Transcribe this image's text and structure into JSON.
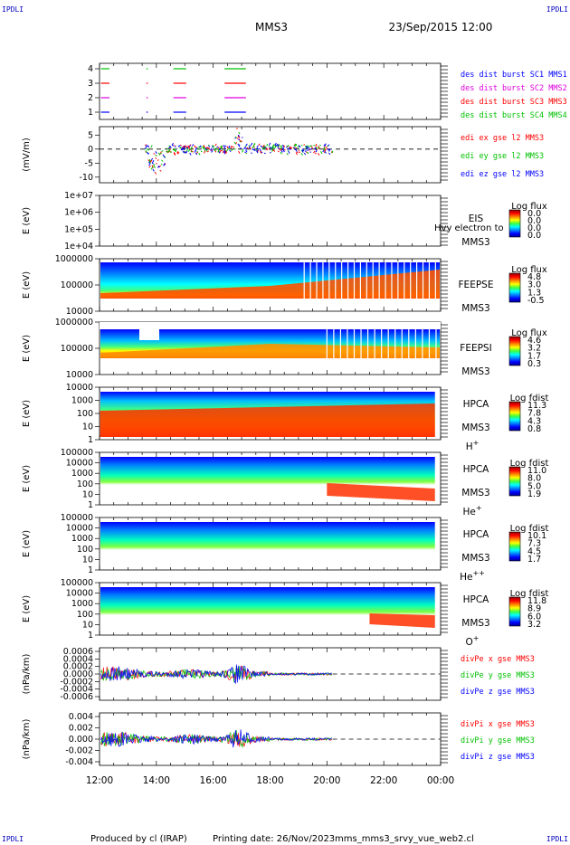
{
  "header": {
    "logo_left": "IPDLI",
    "logo_right": "IPDLI",
    "title": "MMS3",
    "date": "23/Sep/2015 12:00"
  },
  "footer": {
    "logo_left": "IPDLI",
    "logo_right": "IPDLI",
    "produced_by": "Produced by cl (IRAP)",
    "printing_date": "Printing date: 26/Nov/2023",
    "file": "mms_mms3_srvy_vue_web2.cl"
  },
  "colors": {
    "red": "#ff0000",
    "magenta": "#e000e0",
    "green": "#00c000",
    "blue": "#0000ff"
  },
  "chart_data": [
    {
      "type": "line",
      "id": "burst",
      "ylabel": "",
      "ytick_labels": [
        "1",
        "2",
        "3",
        "4"
      ],
      "series": [
        {
          "name": "des dist burst SC1 MMS1",
          "color": "#0000ff",
          "level": 1
        },
        {
          "name": "des dist burst SC2 MMS2",
          "color": "#e000e0",
          "level": 2
        },
        {
          "name": "des dist burst SC3 MMS3",
          "color": "#ff0000",
          "level": 3
        },
        {
          "name": "des dist burst SC4 MMS4",
          "color": "#00c000",
          "level": 4
        }
      ],
      "intervals_hours": [
        [
          12.05,
          12.35
        ],
        [
          13.65,
          13.7
        ],
        [
          14.6,
          15.05
        ],
        [
          16.4,
          17.15
        ]
      ]
    },
    {
      "type": "line",
      "id": "edi",
      "ylabel": "(mV/m)",
      "ytick_labels": [
        "5",
        "0",
        "-5",
        "-10"
      ],
      "ylim": [
        -12,
        8
      ],
      "series": [
        {
          "name": "edi ex gse l2 MMS3",
          "color": "#ff0000"
        },
        {
          "name": "edi ey gse l2 MMS3",
          "color": "#00c000"
        },
        {
          "name": "edi ez gse l2 MMS3",
          "color": "#0000ff"
        }
      ]
    },
    {
      "type": "heatmap",
      "id": "eis",
      "ylabel": "E (eV)",
      "ytick_labels": [
        "1e+07",
        "1e+06",
        "1e+05",
        "1e+04"
      ],
      "instrument": [
        "EIS",
        "MMS3"
      ],
      "overlay_text": "Hvy electron to",
      "colorbar_title": "Log flux",
      "colorbar_ticks": [
        "0.0",
        "0.0",
        "0.0",
        "0.0"
      ]
    },
    {
      "type": "heatmap",
      "id": "feepse",
      "ylabel": "E (eV)",
      "ytick_labels": [
        "1000000",
        "100000",
        "10000"
      ],
      "instrument": [
        "FEEPSE",
        "MMS3"
      ],
      "colorbar_title": "Log flux",
      "colorbar_ticks": [
        "4.8",
        "3.0",
        "1.3",
        "-0.5"
      ]
    },
    {
      "type": "heatmap",
      "id": "feepsi",
      "ylabel": "E (eV)",
      "ytick_labels": [
        "1000000",
        "100000",
        "10000"
      ],
      "instrument": [
        "FEEPSI",
        "MMS3"
      ],
      "colorbar_title": "Log flux",
      "colorbar_ticks": [
        "4.6",
        "3.2",
        "1.7",
        "0.3"
      ]
    },
    {
      "type": "heatmap",
      "id": "hpca_h",
      "ylabel": "E (eV)",
      "ytick_labels": [
        "10000",
        "1000",
        "100",
        "10",
        "1"
      ],
      "instrument": [
        "HPCA",
        "MMS3"
      ],
      "species": "H",
      "species_sup": "+",
      "colorbar_title": "Log fdist",
      "colorbar_ticks": [
        "11.3",
        "7.8",
        "4.3",
        "0.8"
      ]
    },
    {
      "type": "heatmap",
      "id": "hpca_he",
      "ylabel": "E (eV)",
      "ytick_labels": [
        "100000",
        "10000",
        "1000",
        "100",
        "10",
        "1"
      ],
      "instrument": [
        "HPCA",
        "MMS3"
      ],
      "species": "He",
      "species_sup": "+",
      "colorbar_title": "Log fdist",
      "colorbar_ticks": [
        "11.0",
        "8.0",
        "5.0",
        "1.9"
      ]
    },
    {
      "type": "heatmap",
      "id": "hpca_hepp",
      "ylabel": "E (eV)",
      "ytick_labels": [
        "100000",
        "10000",
        "1000",
        "100",
        "10",
        "1"
      ],
      "instrument": [
        "HPCA",
        "MMS3"
      ],
      "species": "He",
      "species_sup": "++",
      "colorbar_title": "Log fdist",
      "colorbar_ticks": [
        "10.1",
        "7.3",
        "4.5",
        "1.7"
      ]
    },
    {
      "type": "heatmap",
      "id": "hpca_o",
      "ylabel": "E (eV)",
      "ytick_labels": [
        "100000",
        "10000",
        "1000",
        "100",
        "10",
        "1"
      ],
      "instrument": [
        "HPCA",
        "MMS3"
      ],
      "species": "O",
      "species_sup": "+",
      "colorbar_title": "Log fdist",
      "colorbar_ticks": [
        "11.8",
        "8.9",
        "6.0",
        "3.2"
      ]
    },
    {
      "type": "line",
      "id": "divpe",
      "ylabel": "(nPa/km)",
      "ytick_labels": [
        "0.0006",
        "0.0004",
        "0.0002",
        "0.0000",
        "-0.0002",
        "-0.0004",
        "-0.0006"
      ],
      "ylim": [
        -0.0007,
        0.0007
      ],
      "series": [
        {
          "name": "divPe x gse MMS3",
          "color": "#ff0000"
        },
        {
          "name": "divPe y gse MMS3",
          "color": "#00c000"
        },
        {
          "name": "divPe z gse MMS3",
          "color": "#0000ff"
        }
      ]
    },
    {
      "type": "line",
      "id": "divpi",
      "ylabel": "(nPa/km)",
      "ytick_labels": [
        "0.004",
        "0.002",
        "0.000",
        "-0.002",
        "-0.004"
      ],
      "ylim": [
        -0.0045,
        0.0045
      ],
      "series": [
        {
          "name": "divPi x gse MMS3",
          "color": "#ff0000"
        },
        {
          "name": "divPi y gse MMS3",
          "color": "#00c000"
        },
        {
          "name": "divPi z gse MMS3",
          "color": "#0000ff"
        }
      ]
    }
  ],
  "x_axis": {
    "tick_labels": [
      "12:00",
      "14:00",
      "16:00",
      "18:00",
      "20:00",
      "22:00",
      "00:00"
    ],
    "range_hours": [
      12,
      24
    ]
  }
}
